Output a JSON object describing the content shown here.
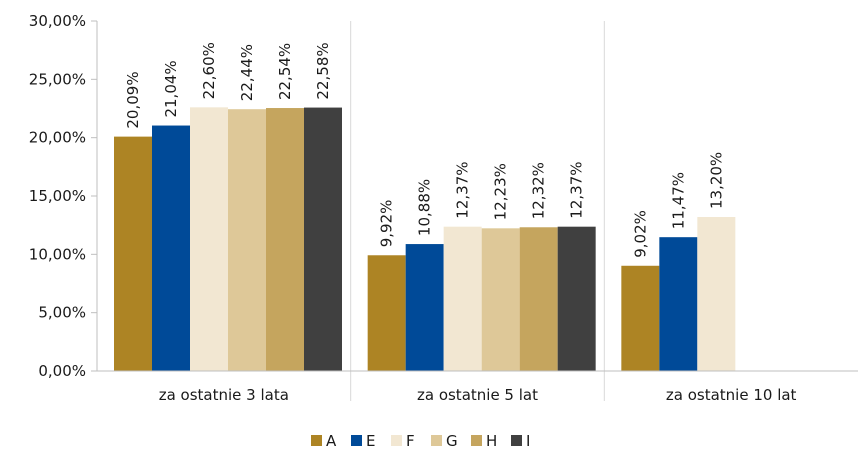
{
  "chart_data": {
    "type": "bar",
    "title": "",
    "xlabel": "",
    "ylabel": "",
    "ylim": [
      0,
      30
    ],
    "y_ticks": [
      "0,00%",
      "5,00%",
      "10,00%",
      "15,00%",
      "20,00%",
      "25,00%",
      "30,00%"
    ],
    "y_tick_values": [
      0,
      5,
      10,
      15,
      20,
      25,
      30
    ],
    "categories": [
      "za ostatnie 3 lata",
      "za ostatnie 5 lat",
      "za ostatnie 10 lat"
    ],
    "series": [
      {
        "name": "A",
        "color": "#AD8424",
        "values": [
          20.09,
          9.92,
          9.02
        ],
        "labels": [
          "20,09%",
          "9,92%",
          "9,02%"
        ]
      },
      {
        "name": "E",
        "color": "#004A98",
        "values": [
          21.04,
          10.88,
          11.47
        ],
        "labels": [
          "21,04%",
          "10,88%",
          "11,47%"
        ]
      },
      {
        "name": "F",
        "color": "#F2E7D2",
        "values": [
          22.6,
          12.37,
          13.2
        ],
        "labels": [
          "22,60%",
          "12,37%",
          "13,20%"
        ]
      },
      {
        "name": "G",
        "color": "#DEC898",
        "values": [
          22.44,
          12.23,
          null
        ],
        "labels": [
          "22,44%",
          "12,23%",
          ""
        ]
      },
      {
        "name": "H",
        "color": "#C5A55E",
        "values": [
          22.54,
          12.32,
          null
        ],
        "labels": [
          "22,54%",
          "12,32%",
          ""
        ]
      },
      {
        "name": "I",
        "color": "#404040",
        "values": [
          22.58,
          12.37,
          null
        ],
        "labels": [
          "22,58%",
          "12,37%",
          ""
        ]
      }
    ],
    "grid": false,
    "legend_position": "bottom"
  }
}
